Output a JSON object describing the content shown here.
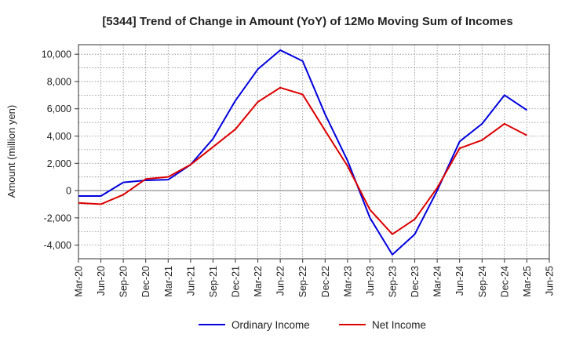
{
  "chart_data": {
    "type": "line",
    "title": "[5344]  Trend of Change in Amount (YoY) of 12Mo Moving Sum of Incomes",
    "xlabel": "",
    "ylabel": "Amount (million yen)",
    "ylim": [
      -5000,
      10700
    ],
    "yticks": [
      -4000,
      -2000,
      0,
      2000,
      4000,
      6000,
      8000,
      10000
    ],
    "ytick_labels": [
      "-4,000",
      "-2,000",
      "0",
      "2,000",
      "4,000",
      "6,000",
      "8,000",
      "10,000"
    ],
    "grid": true,
    "legend_position": "bottom-center",
    "categories": [
      "Mar-20",
      "Jun-20",
      "Sep-20",
      "Dec-20",
      "Mar-21",
      "Jun-21",
      "Sep-21",
      "Dec-21",
      "Mar-22",
      "Jun-22",
      "Sep-22",
      "Dec-22",
      "Mar-23",
      "Jun-23",
      "Sep-23",
      "Dec-23",
      "Mar-24",
      "Jun-24",
      "Sep-24",
      "Dec-24",
      "Mar-25",
      "Jun-25"
    ],
    "series": [
      {
        "name": "Ordinary Income",
        "color": "#0000dd",
        "values": [
          -400,
          -400,
          600,
          750,
          800,
          1900,
          3800,
          6600,
          8900,
          10300,
          9500,
          5600,
          2200,
          -2000,
          -4700,
          -3200,
          0,
          3600,
          4900,
          7000,
          5900,
          null
        ]
      },
      {
        "name": "Net Income",
        "color": "#dd0000",
        "values": [
          -900,
          -1000,
          -300,
          850,
          1000,
          1900,
          3200,
          4500,
          6500,
          7550,
          7050,
          4400,
          1800,
          -1400,
          -3200,
          -2100,
          200,
          3100,
          3700,
          4900,
          4050,
          null
        ]
      }
    ]
  }
}
